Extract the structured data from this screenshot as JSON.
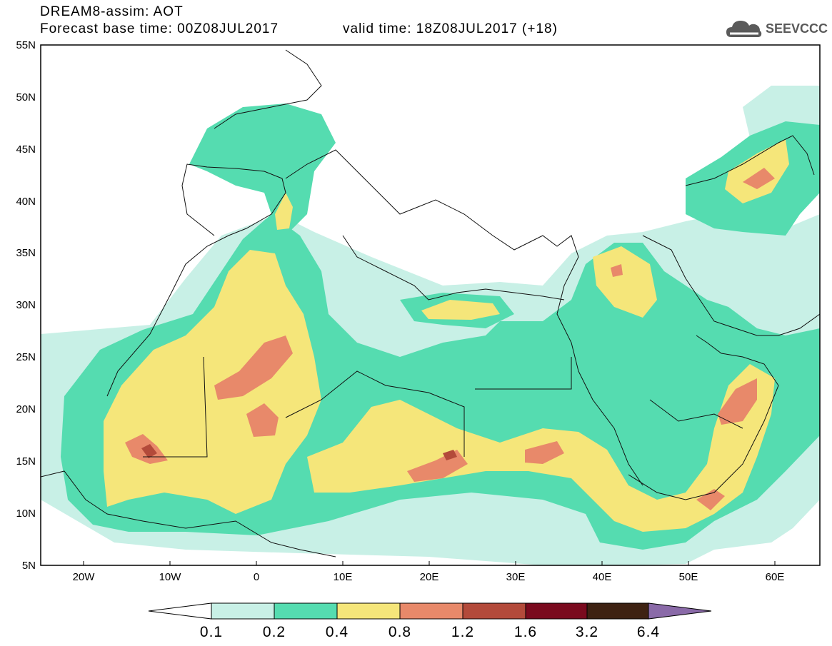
{
  "header": {
    "title": "DREAM8-assim: AOT",
    "base_time": "Forecast base time: 00Z08JUL2017",
    "valid_time": "valid time: 18Z08JUL2017 (+18)"
  },
  "logo": {
    "text": "SEEVCCC",
    "icon": "cloud-icon"
  },
  "map": {
    "variable": "AOT",
    "lat_labels": [
      "55N",
      "50N",
      "45N",
      "40N",
      "35N",
      "30N",
      "25N",
      "20N",
      "15N",
      "10N",
      "5N"
    ],
    "lon_labels": [
      "20W",
      "10W",
      "0",
      "10E",
      "20E",
      "30E",
      "40E",
      "50E",
      "60E"
    ],
    "lat_range": [
      5,
      55
    ],
    "lon_range": [
      -25,
      65
    ]
  },
  "colorbar": {
    "levels": [
      "0.1",
      "0.2",
      "0.4",
      "0.8",
      "1.2",
      "1.6",
      "3.2",
      "6.4"
    ],
    "colors": [
      "#ffffff",
      "#c8f0e6",
      "#55dcb0",
      "#f5e67a",
      "#e8896a",
      "#b34a3a",
      "#7a0a1e",
      "#3e2212",
      "#8a6aa8"
    ]
  }
}
